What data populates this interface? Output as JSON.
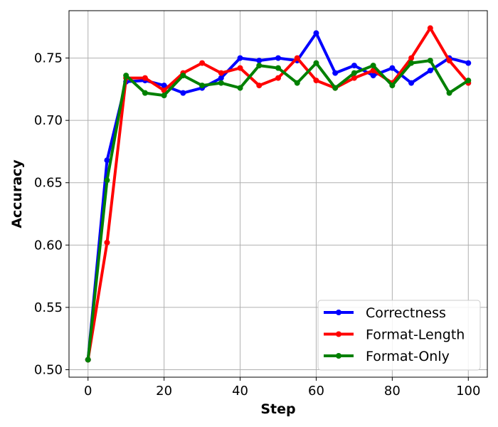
{
  "chart_data": {
    "type": "line",
    "title": "",
    "xlabel": "Step",
    "ylabel": "Accuracy",
    "xlim": [
      -5,
      105
    ],
    "ylim": [
      0.494,
      0.788
    ],
    "xticks": [
      0,
      20,
      40,
      60,
      80,
      100
    ],
    "yticks": [
      0.5,
      0.55,
      0.6,
      0.65,
      0.7,
      0.75
    ],
    "grid": true,
    "legend_position": "bottom-right",
    "x": [
      0,
      5,
      10,
      15,
      20,
      25,
      30,
      35,
      40,
      45,
      50,
      55,
      60,
      65,
      70,
      75,
      80,
      85,
      90,
      95,
      100
    ],
    "series": [
      {
        "name": "Correctness",
        "color": "#0000ff",
        "values": [
          0.508,
          0.668,
          0.731,
          0.732,
          0.728,
          0.722,
          0.726,
          0.734,
          0.75,
          0.748,
          0.75,
          0.748,
          0.77,
          0.738,
          0.744,
          0.736,
          0.742,
          0.73,
          0.74,
          0.75,
          0.746
        ]
      },
      {
        "name": "Format-Length",
        "color": "#ff0000",
        "values": [
          0.508,
          0.602,
          0.734,
          0.734,
          0.724,
          0.738,
          0.746,
          0.738,
          0.742,
          0.728,
          0.734,
          0.75,
          0.732,
          0.726,
          0.734,
          0.74,
          0.73,
          0.75,
          0.774,
          0.748,
          0.73
        ]
      },
      {
        "name": "Format-Only",
        "color": "#008000",
        "values": [
          0.508,
          0.652,
          0.736,
          0.722,
          0.72,
          0.736,
          0.728,
          0.73,
          0.726,
          0.744,
          0.742,
          0.73,
          0.746,
          0.726,
          0.738,
          0.744,
          0.728,
          0.746,
          0.748,
          0.722,
          0.732
        ]
      }
    ]
  }
}
